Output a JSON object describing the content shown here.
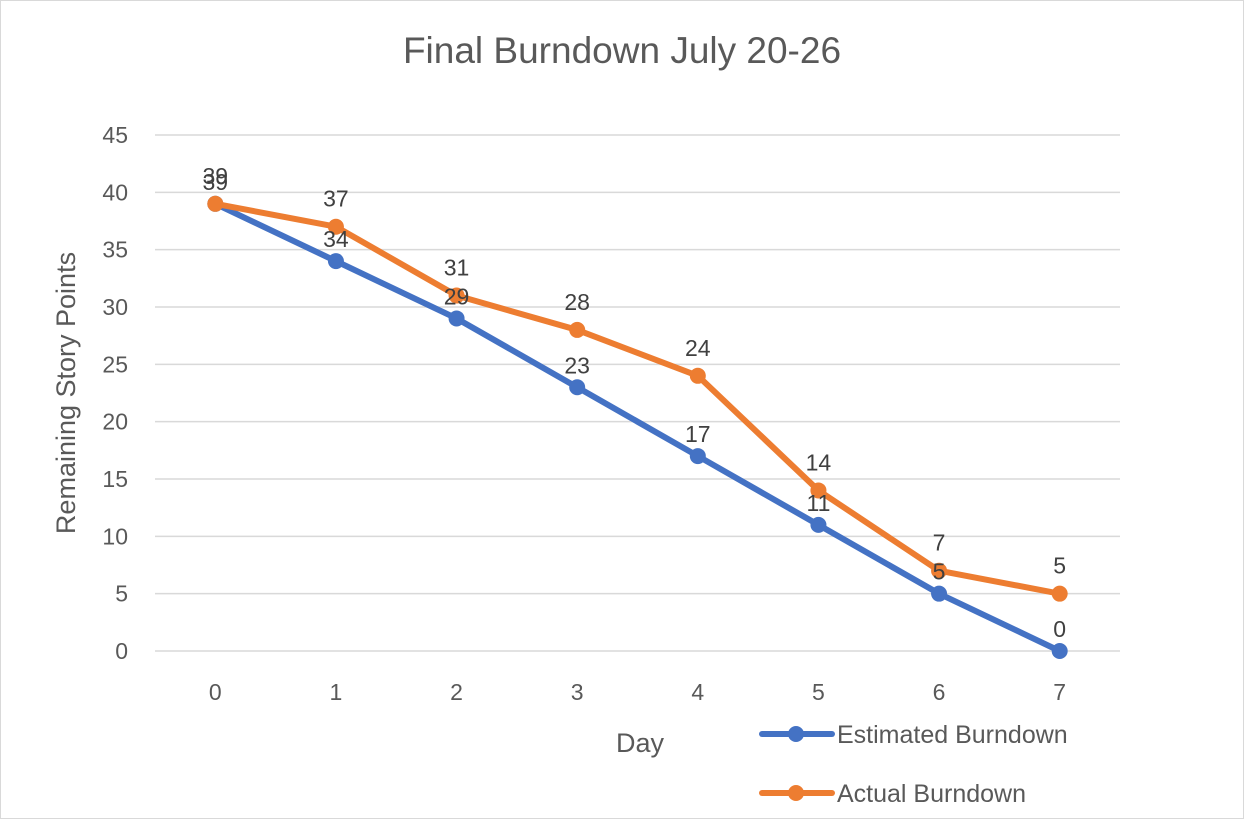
{
  "chart_data": {
    "type": "line",
    "title": "Final Burndown July 20-26",
    "xlabel": "Day",
    "ylabel": "Remaining Story Points",
    "x": [
      0,
      1,
      2,
      3,
      4,
      5,
      6,
      7
    ],
    "ylim": [
      0,
      45
    ],
    "yticks": [
      0,
      5,
      10,
      15,
      20,
      25,
      30,
      35,
      40,
      45
    ],
    "grid": true,
    "legend_position": "bottom-right",
    "series": [
      {
        "name": "Estimated Burndown",
        "color": "#4472c4",
        "values": [
          39,
          34,
          29,
          23,
          17,
          11,
          5,
          0
        ]
      },
      {
        "name": "Actual Burndown",
        "color": "#ed7d31",
        "values": [
          39,
          37,
          31,
          28,
          24,
          14,
          7,
          5
        ]
      }
    ]
  }
}
